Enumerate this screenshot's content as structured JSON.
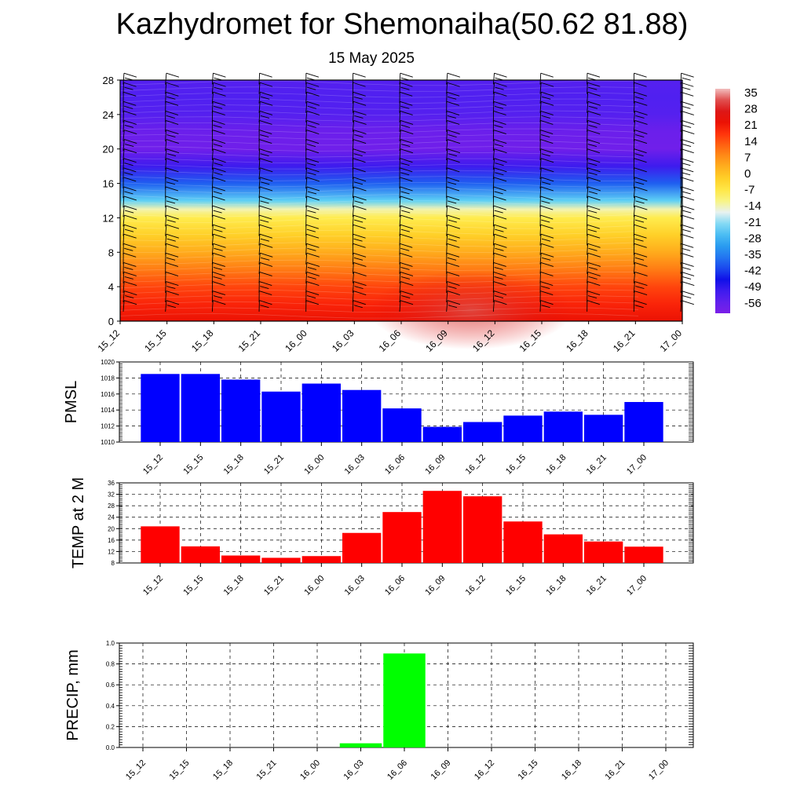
{
  "title": "Kazhydromet for Shemonaiha(50.62 81.88)",
  "subtitle": "15 May 2025",
  "chart_data": [
    {
      "type": "heatmap",
      "name": "temperature-height",
      "x_ticks": [
        "15_12",
        "15_15",
        "15_18",
        "15_21",
        "16_00",
        "16_03",
        "16_06",
        "16_09",
        "16_12",
        "16_15",
        "16_18",
        "16_21",
        "17_00"
      ],
      "y_ticks": [
        0,
        4,
        8,
        12,
        16,
        20,
        24,
        28
      ],
      "ylim": [
        0,
        28
      ],
      "colorbar_labels": [
        "35",
        "28",
        "21",
        "14",
        "7",
        "0",
        "-7",
        "-14",
        "-21",
        "-28",
        "-35",
        "-42",
        "-49",
        "-56"
      ],
      "colorbar_range": [
        -60,
        40
      ],
      "profile_levels": [
        0,
        2,
        4,
        6,
        8,
        10,
        12,
        13,
        14,
        16,
        18,
        20,
        22,
        24,
        26,
        28
      ],
      "profile_values": [
        25,
        22,
        18,
        12,
        6,
        0,
        -6,
        -12,
        -22,
        -38,
        -50,
        -58,
        -57,
        -53,
        -52,
        -53
      ],
      "barbs": "wind barbs overlaid"
    },
    {
      "type": "line",
      "name": "pmsl",
      "ylabel": "PMSL",
      "categories": [
        "15_12",
        "15_15",
        "15_18",
        "15_21",
        "16_00",
        "16_03",
        "16_06",
        "16_09",
        "16_12",
        "16_15",
        "16_18",
        "16_21",
        "17_00"
      ],
      "values": [
        1018.5,
        1018.5,
        1017.8,
        1016.3,
        1017.3,
        1016.5,
        1014.2,
        1011.9,
        1012.5,
        1013.3,
        1013.8,
        1013.4,
        1015.0
      ],
      "ylim": [
        1010,
        1020
      ],
      "y_ticks": [
        "1010",
        "1012",
        "1014",
        "1016",
        "1018",
        "1020"
      ],
      "color": "#0000ff",
      "grid": true
    },
    {
      "type": "line",
      "name": "temp2m",
      "ylabel": "TEMP at 2 M",
      "categories": [
        "15_12",
        "15_15",
        "15_18",
        "15_21",
        "16_00",
        "16_03",
        "16_06",
        "16_09",
        "16_12",
        "16_15",
        "16_18",
        "16_21",
        "17_00"
      ],
      "values": [
        20.8,
        13.8,
        10.6,
        9.8,
        10.4,
        18.5,
        25.8,
        33.2,
        31.3,
        22.5,
        18.0,
        15.5,
        13.7
      ],
      "ylim": [
        8,
        36
      ],
      "y_ticks": [
        "8",
        "12",
        "16",
        "20",
        "24",
        "28",
        "32",
        "36"
      ],
      "color": "#ff0000",
      "grid": true
    },
    {
      "type": "bar",
      "name": "precip",
      "ylabel": "PRECIP, mm",
      "categories": [
        "15_12",
        "15_15",
        "15_18",
        "15_21",
        "16_00",
        "16_03",
        "16_06",
        "16_09",
        "16_12",
        "16_15",
        "16_18",
        "16_21",
        "17_00"
      ],
      "values": [
        0,
        0,
        0,
        0,
        0,
        0.04,
        0.9,
        0,
        0,
        0,
        0,
        0,
        0
      ],
      "ylim": [
        0,
        1.0
      ],
      "y_ticks": [
        "0.0",
        "0.2",
        "0.4",
        "0.6",
        "0.8",
        "1.0"
      ],
      "color": "#00ff00",
      "grid": true
    }
  ]
}
